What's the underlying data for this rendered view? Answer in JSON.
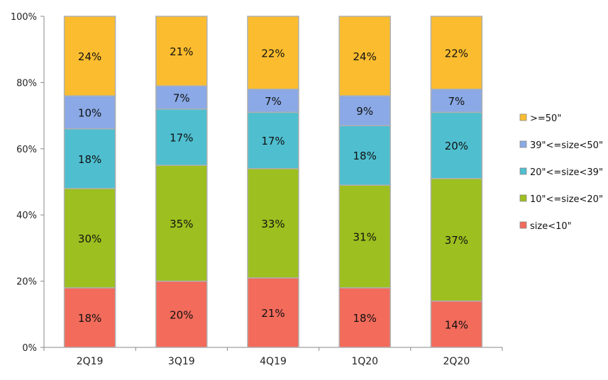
{
  "chart_data": {
    "type": "bar",
    "stacked": true,
    "categories": [
      "2Q19",
      "3Q19",
      "4Q19",
      "1Q20",
      "2Q20"
    ],
    "series": [
      {
        "name": "size<10\"",
        "color": "#f26b5b",
        "values": [
          18,
          20,
          21,
          18,
          14
        ],
        "labels": [
          "18%",
          "20%",
          "21%",
          "18%",
          "14%"
        ]
      },
      {
        "name": "10\"<=size<20\"",
        "color": "#9dbf1f",
        "values": [
          30,
          35,
          33,
          31,
          37
        ],
        "labels": [
          "30%",
          "35%",
          "33%",
          "31%",
          "37%"
        ]
      },
      {
        "name": "20\"<=size<39\"",
        "color": "#4fbfd0",
        "values": [
          18,
          17,
          17,
          18,
          20
        ],
        "labels": [
          "18%",
          "17%",
          "17%",
          "18%",
          "20%"
        ]
      },
      {
        "name": "39\"<=size<50\"",
        "color": "#8aa9e6",
        "values": [
          10,
          7,
          7,
          9,
          7
        ],
        "labels": [
          "10%",
          "7%",
          "7%",
          "9%",
          "7%"
        ]
      },
      {
        "name": ">=50\"",
        "color": "#fbbd2f",
        "values": [
          24,
          21,
          22,
          24,
          22
        ],
        "labels": [
          "24%",
          "21%",
          "22%",
          "24%",
          "22%"
        ]
      }
    ],
    "yticks": [
      "0%",
      "20%",
      "40%",
      "60%",
      "80%",
      "100%"
    ],
    "ylim": [
      0,
      100
    ],
    "legend_order": [
      ">=50\"",
      "39\"<=size<50\"",
      "20\"<=size<39\"",
      "10\"<=size<20\"",
      "size<10\""
    ],
    "legend_position": "right"
  }
}
